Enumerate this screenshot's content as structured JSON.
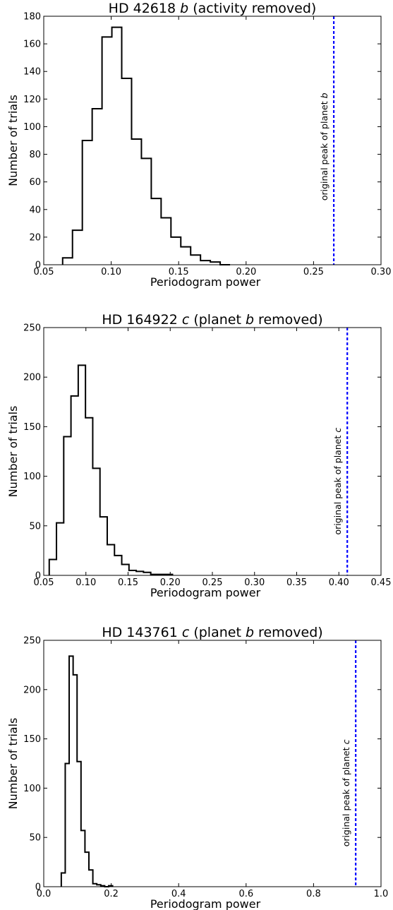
{
  "colors": {
    "histogram": "#000000",
    "reference_line": "#0000ff",
    "background": "#ffffff"
  },
  "chart_data": [
    {
      "type": "histogram",
      "title_parts": [
        {
          "text": "HD 42618 ",
          "italic": false
        },
        {
          "text": "b",
          "italic": true
        },
        {
          "text": " (activity removed)",
          "italic": false
        }
      ],
      "xlabel": "Periodogram power",
      "ylabel": "Number of trials",
      "xlim": [
        0.05,
        0.3
      ],
      "ylim": [
        0,
        180
      ],
      "xticks": [
        0.05,
        0.1,
        0.15,
        0.2,
        0.25,
        0.3
      ],
      "xtick_labels": [
        "0.05",
        "0.10",
        "0.15",
        "0.20",
        "0.25",
        "0.30"
      ],
      "yticks": [
        0,
        20,
        40,
        60,
        80,
        100,
        120,
        140,
        160,
        180
      ],
      "ytick_labels": [
        "0",
        "20",
        "40",
        "60",
        "80",
        "100",
        "120",
        "140",
        "160",
        "180"
      ],
      "bin_edges": [
        0.064,
        0.0713,
        0.0786,
        0.0859,
        0.0932,
        0.1005,
        0.1078,
        0.1151,
        0.1224,
        0.1297,
        0.137,
        0.1443,
        0.1516,
        0.1589,
        0.1662,
        0.1735,
        0.1808,
        0.1881
      ],
      "counts": [
        5,
        25,
        90,
        113,
        165,
        172,
        135,
        91,
        77,
        48,
        34,
        20,
        13,
        7,
        3,
        2,
        0
      ],
      "vline": {
        "x": 0.265,
        "label_parts": [
          {
            "text": "original peak of planet ",
            "italic": false
          },
          {
            "text": "b",
            "italic": true
          }
        ]
      }
    },
    {
      "type": "histogram",
      "title_parts": [
        {
          "text": "HD 164922 ",
          "italic": false
        },
        {
          "text": "c",
          "italic": true
        },
        {
          "text": " (planet ",
          "italic": false
        },
        {
          "text": "b",
          "italic": true
        },
        {
          "text": " removed)",
          "italic": false
        }
      ],
      "xlabel": "Periodogram power",
      "ylabel": "Number of trials",
      "xlim": [
        0.05,
        0.45
      ],
      "ylim": [
        0,
        250
      ],
      "xticks": [
        0.05,
        0.1,
        0.15,
        0.2,
        0.25,
        0.3,
        0.35,
        0.4,
        0.45
      ],
      "xtick_labels": [
        "0.05",
        "0.10",
        "0.15",
        "0.20",
        "0.25",
        "0.30",
        "0.35",
        "0.40",
        "0.45"
      ],
      "yticks": [
        0,
        50,
        100,
        150,
        200,
        250
      ],
      "ytick_labels": [
        "0",
        "50",
        "100",
        "150",
        "200",
        "250"
      ],
      "bin_edges": [
        0.0565,
        0.0651,
        0.0737,
        0.0823,
        0.0909,
        0.0995,
        0.1081,
        0.1167,
        0.1253,
        0.1339,
        0.1425,
        0.1511,
        0.1597,
        0.1683,
        0.1769,
        0.1855,
        0.1941,
        0.2027
      ],
      "counts": [
        16,
        53,
        140,
        181,
        212,
        159,
        108,
        59,
        31,
        20,
        11,
        5,
        4,
        3,
        1,
        1,
        1
      ],
      "vline": {
        "x": 0.41,
        "label_parts": [
          {
            "text": "original peak of planet ",
            "italic": false
          },
          {
            "text": "c",
            "italic": true
          }
        ]
      }
    },
    {
      "type": "histogram",
      "title_parts": [
        {
          "text": "HD 143761 ",
          "italic": false
        },
        {
          "text": "c",
          "italic": true
        },
        {
          "text": " (planet ",
          "italic": false
        },
        {
          "text": "b",
          "italic": true
        },
        {
          "text": " removed)",
          "italic": false
        }
      ],
      "xlabel": "Periodogram power",
      "ylabel": "Number of trials",
      "xlim": [
        0.0,
        1.0
      ],
      "ylim": [
        0,
        250
      ],
      "xticks": [
        0.0,
        0.2,
        0.4,
        0.6,
        0.8,
        1.0
      ],
      "xtick_labels": [
        "0.0",
        "0.2",
        "0.4",
        "0.6",
        "0.8",
        "1.0"
      ],
      "yticks": [
        0,
        50,
        100,
        150,
        200,
        250
      ],
      "ytick_labels": [
        "0",
        "50",
        "100",
        "150",
        "200",
        "250"
      ],
      "bin_edges": [
        0.052,
        0.0637,
        0.0754,
        0.0871,
        0.0988,
        0.1105,
        0.1222,
        0.1339,
        0.1456,
        0.1573,
        0.169,
        0.1807,
        0.1924,
        0.2041
      ],
      "counts": [
        14,
        125,
        234,
        215,
        127,
        57,
        35,
        17,
        3,
        2,
        1,
        0,
        1
      ],
      "vline": {
        "x": 0.925,
        "label_parts": [
          {
            "text": "original peak of planet ",
            "italic": false
          },
          {
            "text": "c",
            "italic": true
          }
        ]
      }
    }
  ]
}
